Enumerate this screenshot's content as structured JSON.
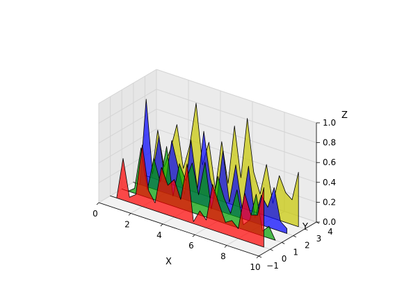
{
  "chart_data": {
    "type": "3d-polygon",
    "title": "",
    "xlabel": "X",
    "ylabel": "Y",
    "zlabel": "Z",
    "xlim": [
      0,
      10
    ],
    "ylim": [
      -1,
      4
    ],
    "zlim": [
      0,
      1
    ],
    "x_ticks": [
      "0",
      "2",
      "4",
      "6",
      "8",
      "10"
    ],
    "y_ticks": [
      "−1",
      "0",
      "1",
      "2",
      "3",
      "4"
    ],
    "z_ticks": [
      "0.0",
      "0.2",
      "0.4",
      "0.6",
      "0.8",
      "1.0"
    ],
    "grid": true,
    "series": [
      {
        "y": 0,
        "color": "#ff0000",
        "x": [
          0,
          0.4,
          0.8,
          1.2,
          1.6,
          2.0,
          2.4,
          2.8,
          3.2,
          3.6,
          4.0,
          4.4,
          4.8,
          5.2,
          5.6,
          6.0,
          6.4,
          6.8,
          7.2,
          7.6,
          8.0,
          8.4,
          8.8,
          9.2,
          9.6
        ],
        "values": [
          0,
          0,
          0.42,
          0.05,
          0.1,
          0.62,
          0.18,
          0.08,
          0.46,
          0.3,
          0.38,
          0.2,
          0.58,
          0.02,
          0.15,
          0.08,
          0.46,
          0.28,
          0.12,
          0.16,
          0.1,
          0.48,
          0.28,
          0.3,
          0.6
        ]
      },
      {
        "y": 1,
        "color": "#00a000",
        "x": [
          0,
          0.4,
          0.8,
          1.2,
          1.6,
          2.0,
          2.4,
          2.8,
          3.2,
          3.6,
          4.0,
          4.4,
          4.8,
          5.2,
          5.6,
          6.0,
          6.4,
          6.8,
          7.2,
          7.6,
          8.0,
          8.4,
          8.8,
          9.2,
          9.6
        ],
        "values": [
          0,
          0,
          0.05,
          0.48,
          0.08,
          0.42,
          0.2,
          0.58,
          0.1,
          0.45,
          0.3,
          0.5,
          0.2,
          0.55,
          0.1,
          0.45,
          0.25,
          0.12,
          0.38,
          0.05,
          0.12,
          0.4,
          0.05,
          0.12,
          0.0
        ]
      },
      {
        "y": 2,
        "color": "#0000ff",
        "x": [
          0,
          0.4,
          0.8,
          1.2,
          1.6,
          2.0,
          2.4,
          2.8,
          3.2,
          3.6,
          4.0,
          4.4,
          4.8,
          5.2,
          5.6,
          6.0,
          6.4,
          6.8,
          7.2,
          7.6,
          8.0,
          8.4,
          8.8,
          9.2,
          9.6
        ],
        "values": [
          0,
          0,
          0.88,
          0.15,
          0.55,
          0.1,
          0.55,
          0.3,
          0.05,
          0.62,
          0.15,
          0.75,
          0.3,
          0.08,
          0.62,
          0.12,
          0.52,
          0.1,
          0.55,
          0.05,
          0.3,
          0.2,
          0.42,
          0.1,
          0.05
        ]
      },
      {
        "y": 3,
        "color": "#c8c800",
        "x": [
          0,
          0.4,
          0.8,
          1.2,
          1.6,
          2.0,
          2.4,
          2.8,
          3.2,
          3.6,
          4.0,
          4.4,
          4.8,
          5.2,
          5.6,
          6.0,
          6.4,
          6.8,
          7.2,
          7.6,
          8.0,
          8.4,
          8.8,
          9.2,
          9.6
        ],
        "values": [
          0,
          0,
          0.5,
          0.15,
          0.35,
          0.62,
          0.2,
          0.45,
          0.9,
          0.3,
          0.55,
          0.1,
          0.6,
          0.2,
          0.8,
          0.3,
          0.92,
          0.4,
          0.2,
          0.52,
          0.15,
          0.45,
          0.3,
          0.25,
          0.55
        ]
      }
    ]
  }
}
